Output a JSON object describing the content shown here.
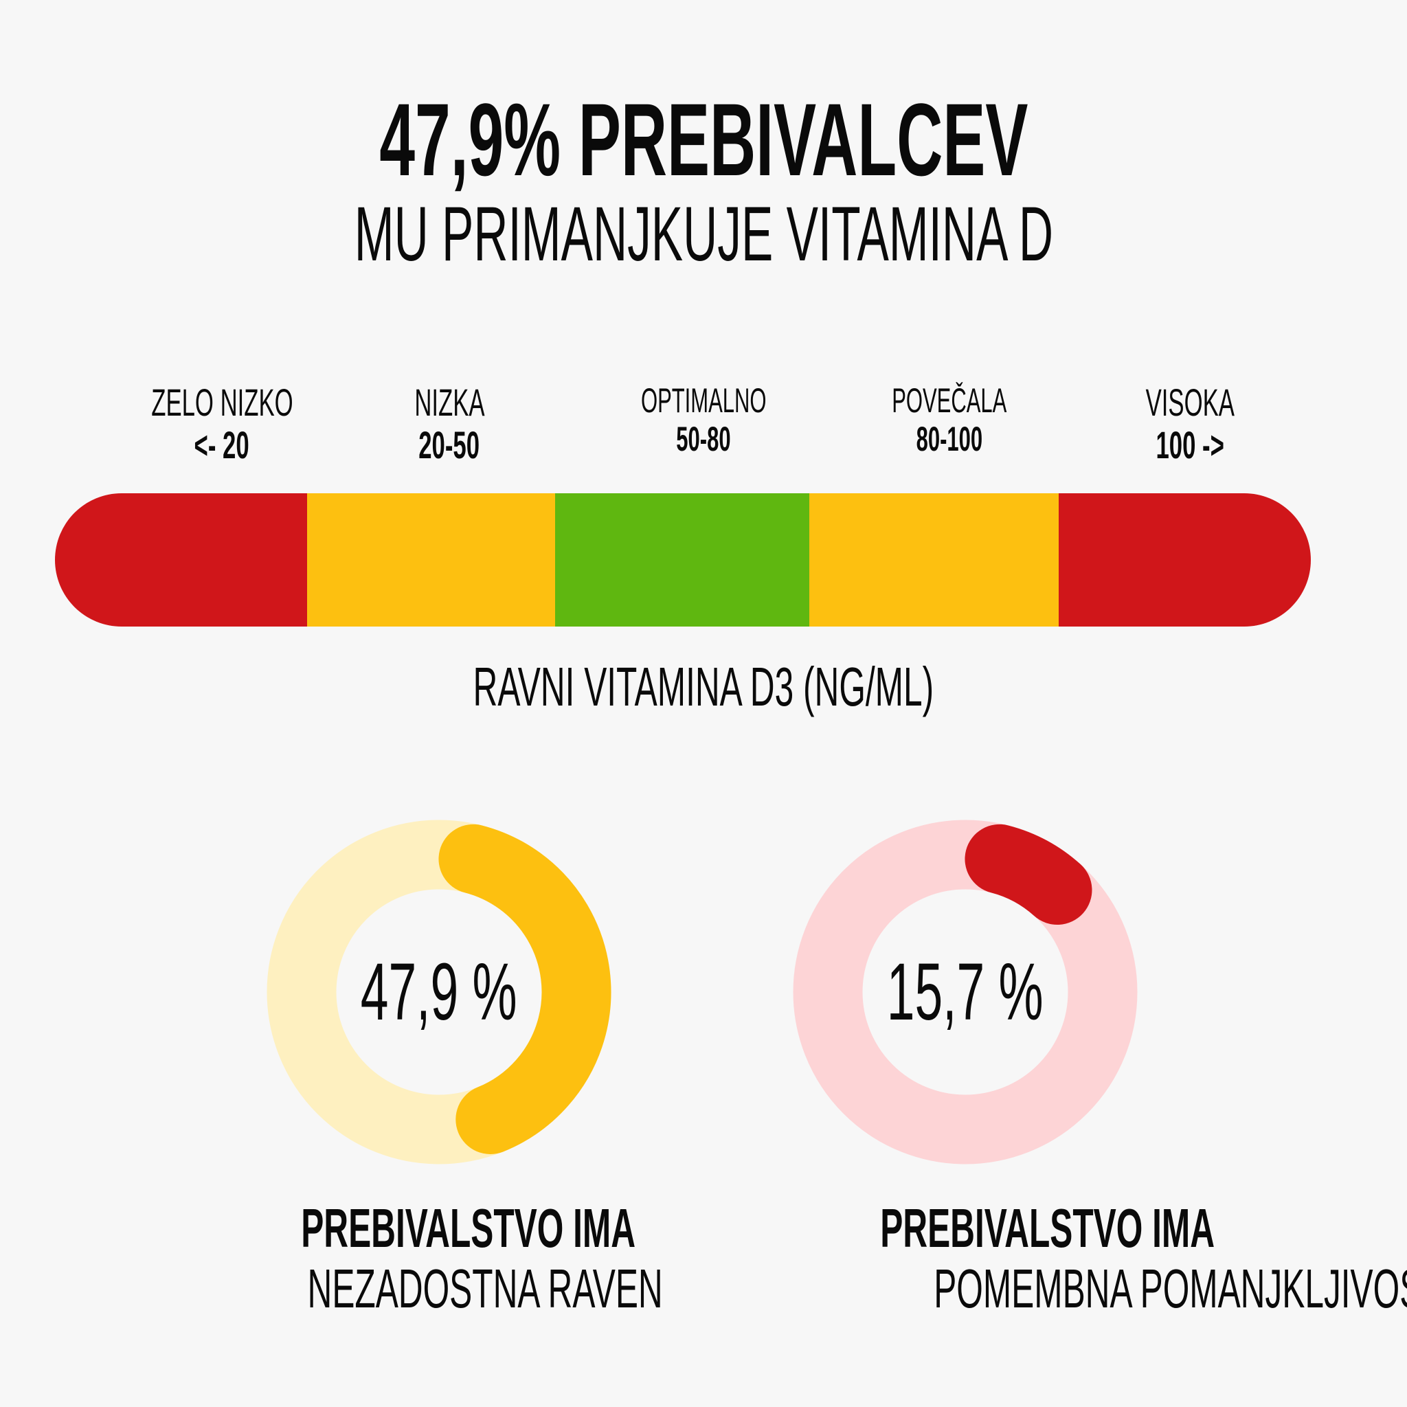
{
  "title": {
    "line1": "47,9% PREBIVALCEV",
    "line2": "MU PRIMANJKUJE VITAMINA D"
  },
  "scale": {
    "ranges": [
      {
        "name": "ZELO NIZKO",
        "range": "<- 20",
        "color": "#D0161A"
      },
      {
        "name": "NIZKA",
        "range": "20-50",
        "color": "#FDC010"
      },
      {
        "name": "OPTIMALNO",
        "range": "50-80",
        "color": "#5FB710"
      },
      {
        "name": "POVEČALA",
        "range": "80-100",
        "color": "#FDC010"
      },
      {
        "name": "VISOKA",
        "range": "100 ->",
        "color": "#D0161A"
      }
    ],
    "axis_label": "RAVNI VITAMINA D3 (NG/ML)"
  },
  "chart_data": [
    {
      "type": "pie",
      "variant": "donut",
      "values": [
        47.9
      ],
      "label": "47,9 %",
      "caption_bold": "PREBIVALSTVO IMA",
      "caption": "NEZADOSTNA RAVEN",
      "color": "#FDC010",
      "track_color": "#FEF0C0"
    },
    {
      "type": "pie",
      "variant": "donut",
      "values": [
        15.7
      ],
      "label": "15,7 %",
      "caption_bold": "PREBIVALSTVO IMA",
      "caption": "POMEMBNA POMANJKLJIVOST",
      "color": "#D0161A",
      "track_color": "#FDD4D6"
    }
  ]
}
